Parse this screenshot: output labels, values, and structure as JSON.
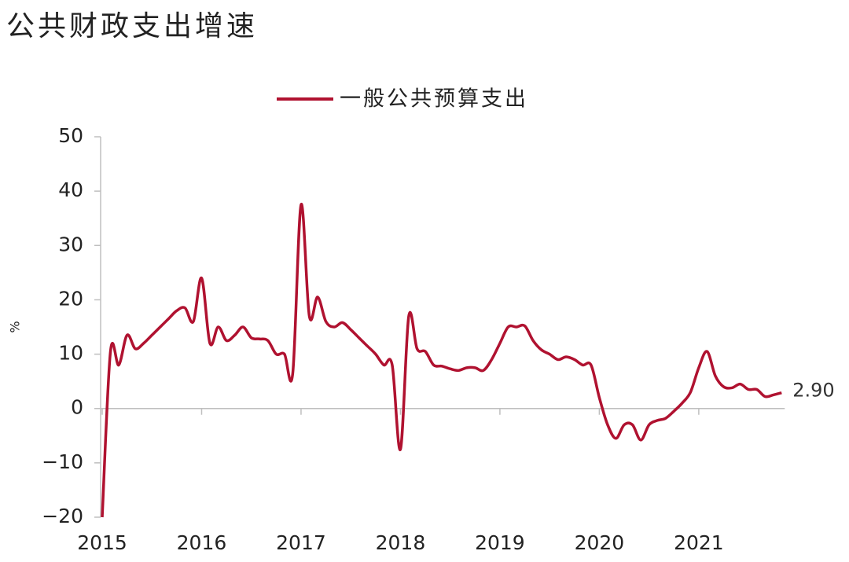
{
  "chart_data": {
    "type": "line",
    "title": "公共财政支出增速",
    "y_label": "%",
    "categories": [
      "2015",
      null,
      null,
      null,
      null,
      null,
      null,
      null,
      null,
      null,
      null,
      null,
      "2016",
      null,
      null,
      null,
      null,
      null,
      null,
      null,
      null,
      null,
      null,
      null,
      "2017",
      null,
      null,
      null,
      null,
      null,
      null,
      null,
      null,
      null,
      null,
      null,
      "2018",
      null,
      null,
      null,
      null,
      null,
      null,
      null,
      null,
      null,
      null,
      null,
      "2019",
      null,
      null,
      null,
      null,
      null,
      null,
      null,
      null,
      null,
      null,
      null,
      "2020",
      null,
      null,
      null,
      null,
      null,
      null,
      null,
      null,
      null,
      null,
      null,
      "2021",
      null,
      null,
      null,
      null,
      null,
      null,
      null,
      null,
      null,
      null
    ],
    "series": [
      {
        "name": "一般公共预算支出",
        "color": "#b01230",
        "values": [
          -20,
          10.5,
          8,
          13.5,
          11,
          12,
          13.5,
          15,
          16.5,
          18,
          18.5,
          16,
          24,
          12,
          15,
          12.5,
          13.5,
          15,
          13,
          12.8,
          12.5,
          10,
          10,
          6.5,
          37.5,
          17,
          20.5,
          16,
          15,
          15.8,
          14.5,
          13,
          11.5,
          10,
          8,
          8,
          -7.5,
          17,
          11,
          10.5,
          8,
          7.8,
          7.3,
          7,
          7.5,
          7.5,
          7,
          9,
          12,
          15,
          15,
          15.2,
          12.5,
          10.8,
          10,
          9,
          9.5,
          9,
          8,
          8,
          2,
          -3,
          -5.5,
          -3,
          -3,
          -5.8,
          -3,
          -2.2,
          -1.8,
          -0.5,
          1,
          3,
          7.5,
          10.5,
          6,
          4,
          3.8,
          4.5,
          3.5,
          3.5,
          2.2,
          2.5,
          2.9
        ],
        "value_labels": [
          null,
          null,
          null,
          null,
          null,
          null,
          null,
          null,
          null,
          null,
          null,
          null,
          null,
          null,
          null,
          null,
          null,
          null,
          null,
          null,
          null,
          null,
          null,
          null,
          null,
          null,
          null,
          null,
          null,
          null,
          null,
          null,
          null,
          null,
          null,
          null,
          null,
          null,
          null,
          null,
          null,
          null,
          null,
          null,
          null,
          null,
          null,
          null,
          null,
          null,
          null,
          null,
          null,
          null,
          null,
          null,
          null,
          null,
          null,
          null,
          null,
          null,
          null,
          null,
          null,
          null,
          null,
          null,
          null,
          null,
          null,
          null,
          null,
          null,
          null,
          null,
          null,
          null,
          null,
          null,
          null,
          null,
          "2.90"
        ]
      }
    ],
    "ylim": [
      -20,
      50
    ],
    "yticks": [
      {
        "value": -20,
        "label": "−20"
      },
      {
        "value": -10,
        "label": "−10"
      },
      0,
      10,
      20,
      30,
      40,
      50
    ],
    "legend": "top"
  }
}
